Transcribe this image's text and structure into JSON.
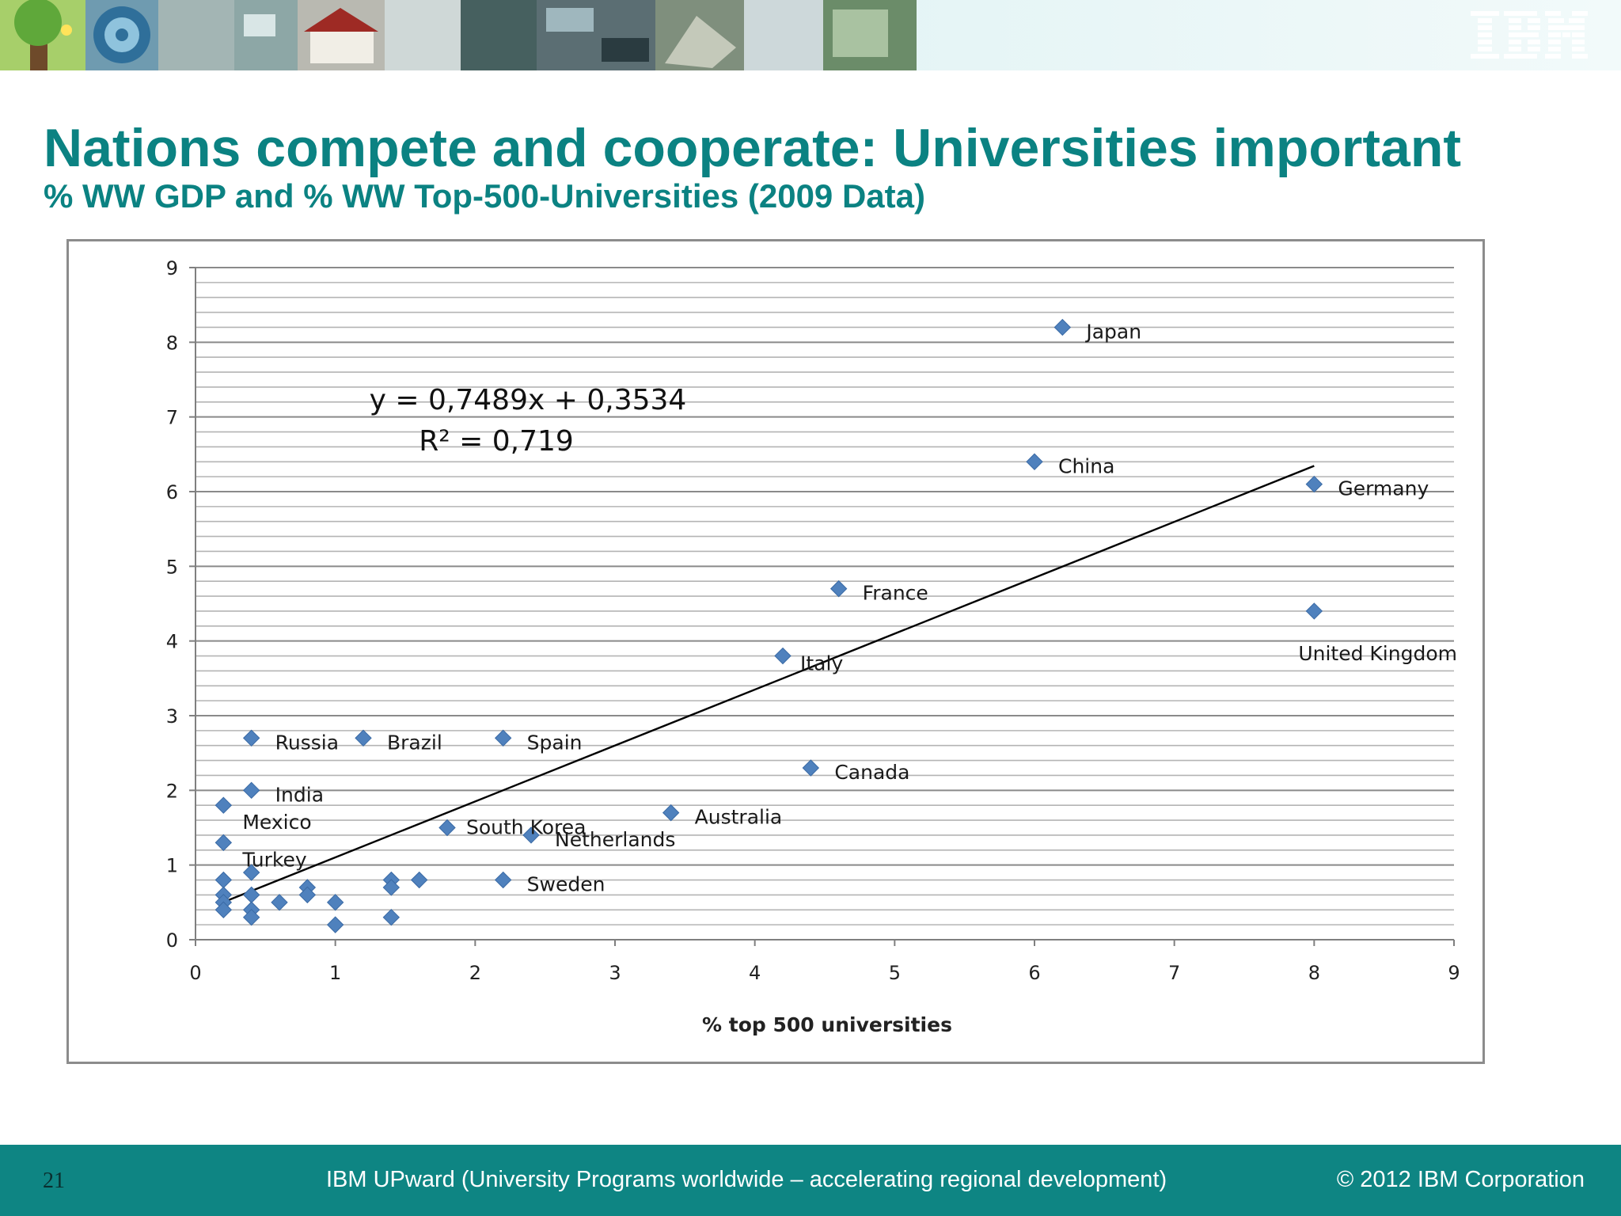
{
  "slide": {
    "title": "Nations compete and cooperate: Universities important",
    "subtitle": "% WW GDP and % WW Top-500-Universities (2009 Data)"
  },
  "banner": {
    "logo_text": "IBM",
    "logo_icon": "ibm-logo-icon"
  },
  "footer": {
    "page_number": "21",
    "center_text": "IBM UPward (University Programs worldwide – accelerating regional development)",
    "copyright": "© 2012 IBM Corporation"
  },
  "colors": {
    "accent": "#0b8282",
    "footer_bg": "#0e8583",
    "marker": "#4f81bd"
  },
  "chart_data": {
    "type": "scatter",
    "xlabel": "% top 500 universities",
    "ylabel": "",
    "xlim": [
      0,
      9
    ],
    "ylim": [
      0,
      9
    ],
    "x_ticks": [
      "0",
      "1",
      "2",
      "3",
      "4",
      "5",
      "6",
      "7",
      "8",
      "9"
    ],
    "y_ticks": [
      "0",
      "1",
      "2",
      "3",
      "4",
      "5",
      "6",
      "7",
      "8",
      "9"
    ],
    "grid": "horizontal",
    "trendline": {
      "slope": 0.7489,
      "intercept": 0.3534,
      "x_range": [
        0.2,
        8
      ],
      "equation_text": "y = 0,7489x + 0,3534",
      "r2_text": "R² = 0,719"
    },
    "points": [
      {
        "x": 6.2,
        "y": 8.2,
        "label": "Japan"
      },
      {
        "x": 6.0,
        "y": 6.4,
        "label": "China"
      },
      {
        "x": 8.0,
        "y": 6.1,
        "label": "Germany"
      },
      {
        "x": 4.6,
        "y": 4.7,
        "label": "France"
      },
      {
        "x": 8.0,
        "y": 4.4,
        "label": "United Kingdom"
      },
      {
        "x": 4.2,
        "y": 3.8,
        "label": "Italy"
      },
      {
        "x": 0.4,
        "y": 2.7,
        "label": "Russia"
      },
      {
        "x": 1.2,
        "y": 2.7,
        "label": "Brazil"
      },
      {
        "x": 2.2,
        "y": 2.7,
        "label": "Spain"
      },
      {
        "x": 4.4,
        "y": 2.3,
        "label": "Canada"
      },
      {
        "x": 0.4,
        "y": 2.0,
        "label": "India"
      },
      {
        "x": 0.2,
        "y": 1.8,
        "label": "Mexico"
      },
      {
        "x": 1.8,
        "y": 1.5,
        "label": "South Korea"
      },
      {
        "x": 3.4,
        "y": 1.7,
        "label": "Australia"
      },
      {
        "x": 2.4,
        "y": 1.4,
        "label": "Netherlands"
      },
      {
        "x": 0.2,
        "y": 1.3,
        "label": "Turkey"
      },
      {
        "x": 2.2,
        "y": 0.8,
        "label": "Sweden"
      },
      {
        "x": 0.2,
        "y": 0.8,
        "label": ""
      },
      {
        "x": 0.4,
        "y": 0.9,
        "label": ""
      },
      {
        "x": 0.2,
        "y": 0.6,
        "label": ""
      },
      {
        "x": 0.2,
        "y": 0.5,
        "label": ""
      },
      {
        "x": 0.2,
        "y": 0.4,
        "label": ""
      },
      {
        "x": 0.4,
        "y": 0.6,
        "label": ""
      },
      {
        "x": 0.4,
        "y": 0.4,
        "label": ""
      },
      {
        "x": 0.4,
        "y": 0.3,
        "label": ""
      },
      {
        "x": 0.6,
        "y": 0.5,
        "label": ""
      },
      {
        "x": 0.8,
        "y": 0.7,
        "label": ""
      },
      {
        "x": 0.8,
        "y": 0.6,
        "label": ""
      },
      {
        "x": 1.0,
        "y": 0.5,
        "label": ""
      },
      {
        "x": 1.0,
        "y": 0.2,
        "label": ""
      },
      {
        "x": 1.4,
        "y": 0.8,
        "label": ""
      },
      {
        "x": 1.4,
        "y": 0.7,
        "label": ""
      },
      {
        "x": 1.4,
        "y": 0.3,
        "label": ""
      },
      {
        "x": 1.6,
        "y": 0.8,
        "label": ""
      }
    ]
  }
}
